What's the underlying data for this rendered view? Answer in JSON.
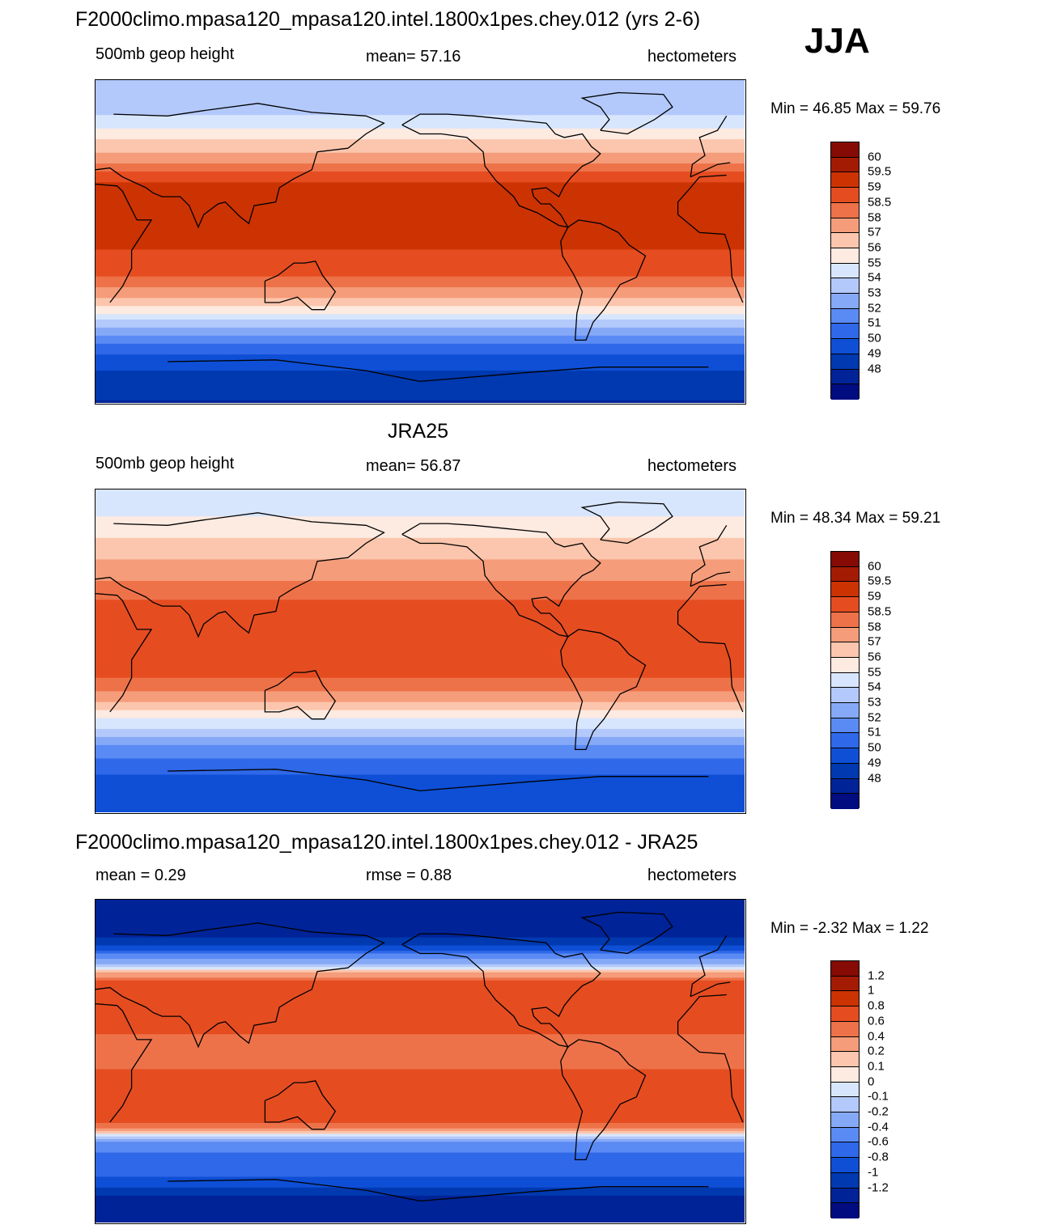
{
  "season": "JJA",
  "colors": {
    "ten": [
      "#000c80",
      "#002398",
      "#0039b0",
      "#0e4fd6",
      "#2f68e8",
      "#5a8af4",
      "#86a9f7",
      "#b3c9fb",
      "#d8e6fd",
      "#fdeae0",
      "#fbc6ad",
      "#f59c7a",
      "#ee7249",
      "#e54d21",
      "#cc3303",
      "#a41b03",
      "#860b04"
    ],
    "diff": [
      "#000c80",
      "#002398",
      "#0039b0",
      "#0e4fd6",
      "#2f68e8",
      "#5a8af4",
      "#86a9f7",
      "#b3c9fb",
      "#d8e6fd",
      "#fdeae0",
      "#fbc6ad",
      "#f59c7a",
      "#ee7249",
      "#e54d21",
      "#cc3303",
      "#a41b03",
      "#860b04"
    ]
  },
  "chart_data": [
    {
      "type": "heatmap",
      "title": "F2000climo.mpasa120_mpasa120.intel.1800x1pes.chey.012 (yrs 2-6)",
      "left_label": "500mb geop height",
      "center_label": "mean=  57.16",
      "units": "hectometers",
      "minmax": "Min =  46.85 Max =  59.76",
      "colorbar_labels": [
        "60",
        "59.5",
        "59",
        "58.5",
        "58",
        "57",
        "56",
        "55",
        "54",
        "53",
        "52",
        "51",
        "50",
        "49",
        "48"
      ],
      "profile": {
        "lat": [
          90,
          75,
          65,
          55,
          45,
          35,
          25,
          15,
          5,
          -5,
          -15,
          -25,
          -35,
          -45,
          -55,
          -65,
          -75,
          -90
        ],
        "value": [
          53.1,
          53.4,
          54.8,
          56.2,
          57.8,
          58.9,
          59.3,
          59.0,
          59.2,
          59.0,
          58.8,
          58.1,
          56.4,
          53.5,
          51.3,
          49.8,
          48.6,
          47.9
        ]
      }
    },
    {
      "type": "heatmap",
      "title": "JRA25",
      "left_label": "500mb geop height",
      "center_label": "mean=  56.87",
      "units": "hectometers",
      "minmax": "Min =  48.34 Max =  59.21",
      "colorbar_labels": [
        "60",
        "59.5",
        "59",
        "58.5",
        "58",
        "57",
        "56",
        "55",
        "54",
        "53",
        "52",
        "51",
        "50",
        "49",
        "48"
      ],
      "profile": {
        "lat": [
          90,
          75,
          65,
          55,
          45,
          35,
          25,
          15,
          5,
          -5,
          -15,
          -25,
          -35,
          -45,
          -55,
          -65,
          -75,
          -90
        ],
        "value": [
          54.7,
          55.0,
          55.8,
          56.6,
          57.6,
          58.3,
          58.6,
          58.7,
          58.8,
          58.7,
          58.5,
          57.8,
          55.6,
          53.6,
          51.6,
          50.3,
          49.6,
          49.2
        ]
      }
    },
    {
      "type": "heatmap",
      "title": "F2000climo.mpasa120_mpasa120.intel.1800x1pes.chey.012 - JRA25",
      "left_label": "mean =    0.29",
      "center_label": "rmse =    0.88",
      "units": "hectometers",
      "minmax": "Min =  -2.32 Max =    1.22",
      "colorbar_labels": [
        "1.2",
        "1",
        "0.8",
        "0.6",
        "0.4",
        "0.2",
        "0.1",
        "0",
        "-0.1",
        "-0.2",
        "-0.4",
        "-0.6",
        "-0.8",
        "-1",
        "-1.2"
      ],
      "profile": {
        "lat": [
          90,
          75,
          65,
          55,
          45,
          35,
          25,
          15,
          5,
          -5,
          -15,
          -25,
          -35,
          -45,
          -55,
          -65,
          -75,
          -90
        ],
        "value": [
          -1.5,
          -1.6,
          -1.0,
          -0.3,
          0.6,
          0.75,
          0.7,
          0.6,
          0.5,
          0.6,
          0.7,
          0.75,
          0.6,
          -0.4,
          -0.7,
          -0.8,
          -1.2,
          -1.3
        ]
      }
    }
  ]
}
